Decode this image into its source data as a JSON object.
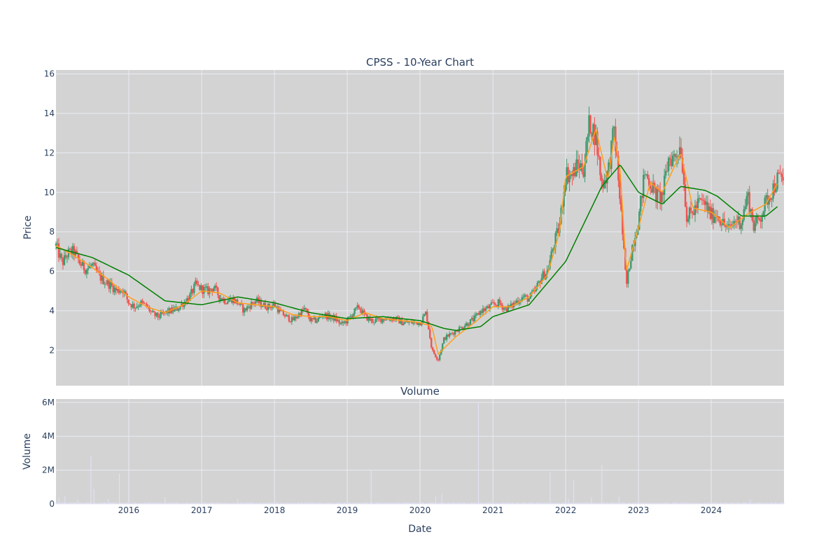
{
  "chart_data": [
    {
      "type": "candlestick",
      "title": "CPSS - 10-Year Chart",
      "xlabel": "",
      "ylabel": "Price",
      "ylim": [
        0.2,
        16.2
      ],
      "y_ticks": [
        2,
        4,
        6,
        8,
        10,
        12,
        14,
        16
      ],
      "x_range": [
        "2015-01-01",
        "2024-12-31"
      ],
      "grid": true,
      "colors": {
        "up": "#26a69a",
        "up_render": "#3f9a6e",
        "down": "#ef5350",
        "ma_short": "#ff9f1a",
        "ma_long": "#008000",
        "background": "#d3d3d3",
        "grid": "#e8ecf3"
      },
      "series": [
        {
          "kind": "close_anchors",
          "points": [
            [
              "2015-01-01",
              7.3
            ],
            [
              "2015-02-01",
              6.4
            ],
            [
              "2015-03-01",
              6.9
            ],
            [
              "2015-04-01",
              7.0
            ],
            [
              "2015-05-01",
              6.4
            ],
            [
              "2015-06-01",
              6.1
            ],
            [
              "2015-07-01",
              6.3
            ],
            [
              "2015-08-01",
              5.8
            ],
            [
              "2015-09-01",
              5.5
            ],
            [
              "2015-10-01",
              5.3
            ],
            [
              "2015-11-01",
              5.0
            ],
            [
              "2015-12-01",
              5.1
            ],
            [
              "2016-01-01",
              4.4
            ],
            [
              "2016-02-01",
              4.2
            ],
            [
              "2016-03-01",
              4.4
            ],
            [
              "2016-04-01",
              4.2
            ],
            [
              "2016-05-01",
              3.8
            ],
            [
              "2016-06-01",
              3.7
            ],
            [
              "2016-07-01",
              3.9
            ],
            [
              "2016-08-01",
              4.0
            ],
            [
              "2016-09-01",
              4.1
            ],
            [
              "2016-10-01",
              4.4
            ],
            [
              "2016-11-01",
              4.7
            ],
            [
              "2016-12-01",
              5.3
            ],
            [
              "2017-01-01",
              5.1
            ],
            [
              "2017-02-01",
              5.0
            ],
            [
              "2017-03-01",
              5.2
            ],
            [
              "2017-04-01",
              4.7
            ],
            [
              "2017-05-01",
              4.5
            ],
            [
              "2017-06-01",
              4.6
            ],
            [
              "2017-07-01",
              4.4
            ],
            [
              "2017-08-01",
              4.0
            ],
            [
              "2017-09-01",
              4.3
            ],
            [
              "2017-10-01",
              4.5
            ],
            [
              "2017-11-01",
              4.3
            ],
            [
              "2017-12-01",
              4.2
            ],
            [
              "2018-01-01",
              4.3
            ],
            [
              "2018-02-01",
              3.9
            ],
            [
              "2018-03-01",
              3.7
            ],
            [
              "2018-04-01",
              3.5
            ],
            [
              "2018-05-01",
              3.8
            ],
            [
              "2018-06-01",
              4.1
            ],
            [
              "2018-07-01",
              3.5
            ],
            [
              "2018-08-01",
              3.5
            ],
            [
              "2018-09-01",
              3.8
            ],
            [
              "2018-10-01",
              3.7
            ],
            [
              "2018-11-01",
              3.6
            ],
            [
              "2018-12-01",
              3.3
            ],
            [
              "2019-01-01",
              3.5
            ],
            [
              "2019-02-01",
              3.9
            ],
            [
              "2019-03-01",
              4.2
            ],
            [
              "2019-04-01",
              3.7
            ],
            [
              "2019-05-01",
              3.5
            ],
            [
              "2019-06-01",
              3.5
            ],
            [
              "2019-07-01",
              3.6
            ],
            [
              "2019-08-01",
              3.6
            ],
            [
              "2019-09-01",
              3.6
            ],
            [
              "2019-10-01",
              3.4
            ],
            [
              "2019-11-01",
              3.4
            ],
            [
              "2019-12-01",
              3.4
            ],
            [
              "2020-01-01",
              3.4
            ],
            [
              "2020-02-01",
              3.9
            ],
            [
              "2020-03-01",
              2.0
            ],
            [
              "2020-04-01",
              1.5
            ],
            [
              "2020-05-01",
              2.6
            ],
            [
              "2020-06-01",
              2.8
            ],
            [
              "2020-07-01",
              3.0
            ],
            [
              "2020-08-01",
              3.2
            ],
            [
              "2020-09-01",
              3.4
            ],
            [
              "2020-10-01",
              3.6
            ],
            [
              "2020-11-01",
              4.0
            ],
            [
              "2020-12-01",
              4.1
            ],
            [
              "2021-01-01",
              4.3
            ],
            [
              "2021-02-01",
              4.4
            ],
            [
              "2021-03-01",
              4.1
            ],
            [
              "2021-04-01",
              4.2
            ],
            [
              "2021-05-01",
              4.5
            ],
            [
              "2021-06-01",
              4.7
            ],
            [
              "2021-07-01",
              4.6
            ],
            [
              "2021-08-01",
              5.0
            ],
            [
              "2021-09-01",
              5.7
            ],
            [
              "2021-10-01",
              6.0
            ],
            [
              "2021-11-01",
              7.3
            ],
            [
              "2021-12-01",
              8.3
            ],
            [
              "2022-01-01",
              11.0
            ],
            [
              "2022-02-01",
              10.8
            ],
            [
              "2022-03-01",
              11.4
            ],
            [
              "2022-04-01",
              11.2
            ],
            [
              "2022-05-01",
              13.6
            ],
            [
              "2022-06-01",
              12.8
            ],
            [
              "2022-07-01",
              10.4
            ],
            [
              "2022-08-01",
              11.0
            ],
            [
              "2022-09-01",
              13.2
            ],
            [
              "2022-10-01",
              9.6
            ],
            [
              "2022-11-01",
              5.2
            ],
            [
              "2022-12-01",
              7.3
            ],
            [
              "2023-01-01",
              8.6
            ],
            [
              "2023-02-01",
              11.0
            ],
            [
              "2023-03-01",
              10.5
            ],
            [
              "2023-04-01",
              9.8
            ],
            [
              "2023-05-01",
              9.8
            ],
            [
              "2023-06-01",
              11.7
            ],
            [
              "2023-07-01",
              11.8
            ],
            [
              "2023-08-01",
              12.4
            ],
            [
              "2023-09-01",
              8.7
            ],
            [
              "2023-10-01",
              9.0
            ],
            [
              "2023-11-01",
              9.5
            ],
            [
              "2023-12-01",
              9.4
            ],
            [
              "2024-01-01",
              8.8
            ],
            [
              "2024-02-01",
              8.9
            ],
            [
              "2024-03-01",
              8.4
            ],
            [
              "2024-04-01",
              8.1
            ],
            [
              "2024-05-01",
              8.6
            ],
            [
              "2024-06-01",
              8.5
            ],
            [
              "2024-07-01",
              9.9
            ],
            [
              "2024-08-01",
              8.3
            ],
            [
              "2024-09-01",
              8.7
            ],
            [
              "2024-10-01",
              9.5
            ],
            [
              "2024-11-01",
              10.1
            ],
            [
              "2024-12-01",
              10.7
            ]
          ]
        },
        {
          "kind": "ma_short",
          "points": [
            [
              "2015-01-01",
              7.3
            ],
            [
              "2015-04-01",
              6.8
            ],
            [
              "2015-07-01",
              6.2
            ],
            [
              "2015-10-01",
              5.5
            ],
            [
              "2016-01-01",
              4.7
            ],
            [
              "2016-04-01",
              4.2
            ],
            [
              "2016-07-01",
              3.9
            ],
            [
              "2016-10-01",
              4.3
            ],
            [
              "2017-01-01",
              5.0
            ],
            [
              "2017-04-01",
              4.9
            ],
            [
              "2017-07-01",
              4.4
            ],
            [
              "2017-10-01",
              4.3
            ],
            [
              "2018-01-01",
              4.2
            ],
            [
              "2018-04-01",
              3.8
            ],
            [
              "2018-07-01",
              3.7
            ],
            [
              "2018-10-01",
              3.7
            ],
            [
              "2019-01-01",
              3.5
            ],
            [
              "2019-04-01",
              3.9
            ],
            [
              "2019-07-01",
              3.6
            ],
            [
              "2019-10-01",
              3.5
            ],
            [
              "2020-01-01",
              3.4
            ],
            [
              "2020-03-01",
              3.2
            ],
            [
              "2020-04-01",
              1.8
            ],
            [
              "2020-07-01",
              2.7
            ],
            [
              "2020-10-01",
              3.4
            ],
            [
              "2021-01-01",
              4.2
            ],
            [
              "2021-04-01",
              4.2
            ],
            [
              "2021-07-01",
              4.7
            ],
            [
              "2021-10-01",
              5.8
            ],
            [
              "2021-12-01",
              8.0
            ],
            [
              "2022-01-01",
              10.8
            ],
            [
              "2022-04-01",
              11.3
            ],
            [
              "2022-06-01",
              13.2
            ],
            [
              "2022-08-01",
              10.6
            ],
            [
              "2022-09-01",
              12.8
            ],
            [
              "2022-10-01",
              11.2
            ],
            [
              "2022-11-01",
              6.0
            ],
            [
              "2023-01-01",
              8.2
            ],
            [
              "2023-03-01",
              10.5
            ],
            [
              "2023-05-01",
              10.0
            ],
            [
              "2023-08-01",
              12.0
            ],
            [
              "2023-10-01",
              9.2
            ],
            [
              "2024-01-01",
              9.0
            ],
            [
              "2024-04-01",
              8.2
            ],
            [
              "2024-07-01",
              8.9
            ],
            [
              "2024-10-01",
              9.4
            ],
            [
              "2024-12-01",
              10.5
            ]
          ]
        },
        {
          "kind": "ma_long",
          "points": [
            [
              "2015-01-01",
              7.2
            ],
            [
              "2015-07-01",
              6.7
            ],
            [
              "2016-01-01",
              5.8
            ],
            [
              "2016-07-01",
              4.5
            ],
            [
              "2017-01-01",
              4.3
            ],
            [
              "2017-07-01",
              4.7
            ],
            [
              "2018-01-01",
              4.4
            ],
            [
              "2018-07-01",
              3.9
            ],
            [
              "2019-01-01",
              3.6
            ],
            [
              "2019-07-01",
              3.7
            ],
            [
              "2020-01-01",
              3.5
            ],
            [
              "2020-05-01",
              3.1
            ],
            [
              "2020-07-01",
              3.0
            ],
            [
              "2020-11-01",
              3.2
            ],
            [
              "2021-01-01",
              3.7
            ],
            [
              "2021-07-01",
              4.3
            ],
            [
              "2022-01-01",
              6.5
            ],
            [
              "2022-07-01",
              10.3
            ],
            [
              "2022-10-01",
              11.4
            ],
            [
              "2023-01-01",
              10.0
            ],
            [
              "2023-05-01",
              9.4
            ],
            [
              "2023-08-01",
              10.3
            ],
            [
              "2023-12-01",
              10.1
            ],
            [
              "2024-02-01",
              9.8
            ],
            [
              "2024-06-01",
              8.8
            ],
            [
              "2024-10-01",
              8.8
            ],
            [
              "2024-12-01",
              9.3
            ]
          ]
        }
      ]
    },
    {
      "type": "bar",
      "title": "Volume",
      "xlabel": "Date",
      "ylabel": "Volume",
      "ylim": [
        0,
        6200000
      ],
      "y_ticks": [
        {
          "value": 0,
          "label": "0"
        },
        {
          "value": 2000000,
          "label": "2M"
        },
        {
          "value": 4000000,
          "label": "4M"
        },
        {
          "value": 6000000,
          "label": "6M"
        }
      ],
      "x_ticks": [
        {
          "date": "2016-01-01",
          "label": "2016"
        },
        {
          "date": "2017-01-01",
          "label": "2017"
        },
        {
          "date": "2018-01-01",
          "label": "2018"
        },
        {
          "date": "2019-01-01",
          "label": "2019"
        },
        {
          "date": "2020-01-01",
          "label": "2020"
        },
        {
          "date": "2021-01-01",
          "label": "2021"
        },
        {
          "date": "2022-01-01",
          "label": "2022"
        },
        {
          "date": "2023-01-01",
          "label": "2023"
        },
        {
          "date": "2024-01-01",
          "label": "2024"
        }
      ],
      "grid": true,
      "colors": {
        "bar": "#e0e0f4",
        "background": "#d3d3d3"
      },
      "baseline_volume": 60000,
      "spikes": [
        [
          "2015-01-15",
          380000
        ],
        [
          "2015-02-15",
          450000
        ],
        [
          "2015-04-20",
          250000
        ],
        [
          "2015-06-25",
          2800000
        ],
        [
          "2015-07-10",
          900000
        ],
        [
          "2015-09-20",
          300000
        ],
        [
          "2015-11-15",
          1800000
        ],
        [
          "2016-07-01",
          400000
        ],
        [
          "2017-07-01",
          300000
        ],
        [
          "2019-05-01",
          2000000
        ],
        [
          "2020-03-20",
          450000
        ],
        [
          "2020-04-20",
          600000
        ],
        [
          "2020-10-20",
          6000000
        ],
        [
          "2021-10-15",
          1900000
        ],
        [
          "2022-01-15",
          300000
        ],
        [
          "2022-02-10",
          1400000
        ],
        [
          "2022-05-10",
          400000
        ],
        [
          "2022-07-01",
          2300000
        ],
        [
          "2022-09-25",
          450000
        ],
        [
          "2024-07-15",
          250000
        ]
      ]
    }
  ]
}
